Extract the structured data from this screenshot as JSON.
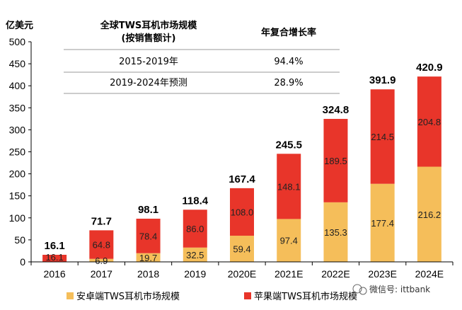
{
  "chart_data": {
    "type": "bar",
    "stacked": true,
    "unit_label": "亿美元",
    "categories": [
      "2016",
      "2017",
      "2018",
      "2019",
      "2020E",
      "2021E",
      "2022E",
      "2023E",
      "2024E"
    ],
    "series": [
      {
        "name": "安卓端TWS耳机市场规模",
        "color": "#F5BE5A",
        "values": [
          0,
          6.9,
          19.7,
          32.5,
          59.4,
          97.4,
          135.3,
          177.4,
          216.2
        ]
      },
      {
        "name": "苹果端TWS耳机市场规模",
        "color": "#E8352A",
        "values": [
          16.1,
          64.8,
          78.4,
          86.0,
          108.0,
          148.1,
          189.5,
          214.5,
          204.8
        ]
      }
    ],
    "segment_labels": {
      "android": [
        "",
        "6.9",
        "19.7",
        "32.5",
        "59.4",
        "97.4",
        "135.3",
        "177.4",
        "216.2"
      ],
      "apple": [
        "16.1",
        "64.8",
        "78.4",
        "86.0",
        "108.0",
        "148.1",
        "189.5",
        "214.5",
        "204.8"
      ]
    },
    "totals": [
      "16.1",
      "71.7",
      "98.1",
      "118.4",
      "167.4",
      "245.5",
      "324.8",
      "391.9",
      "420.9"
    ],
    "ylim": [
      0,
      500
    ],
    "yticks": [
      0,
      50,
      100,
      150,
      200,
      250,
      300,
      350,
      400,
      450,
      500
    ],
    "legend_position": "bottom",
    "grid": false
  },
  "inset_table": {
    "header_left_line1": "全球TWS耳机市场规模",
    "header_left_line2": "(按销售额计)",
    "header_right": "年复合增长率",
    "rows": [
      {
        "period": "2015-2019年",
        "rate": "94.4%"
      },
      {
        "period": "2019-2024年预测",
        "rate": "28.9%"
      }
    ]
  },
  "watermark": "微信号: ittbank"
}
